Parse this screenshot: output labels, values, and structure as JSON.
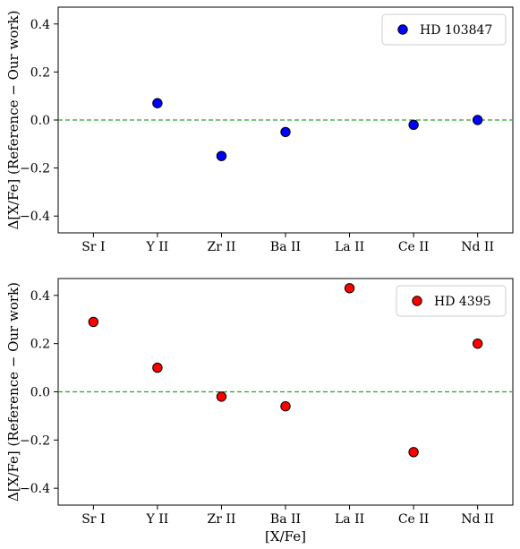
{
  "chart_data": [
    {
      "type": "scatter",
      "categories": [
        "Sr I",
        "Y II",
        "Zr II",
        "Ba II",
        "La II",
        "Ce II",
        "Nd II"
      ],
      "series": [
        {
          "name": "HD 103847",
          "color": "#0000ff",
          "points": [
            {
              "x": "Y II",
              "y": 0.07
            },
            {
              "x": "Zr II",
              "y": -0.15
            },
            {
              "x": "Ba II",
              "y": -0.05
            },
            {
              "x": "Ce II",
              "y": -0.02
            },
            {
              "x": "Nd II",
              "y": 0.0
            }
          ]
        }
      ],
      "xlabel": "",
      "ylabel": "Δ[X/Fe] (Reference − Our work)",
      "ylim": [
        -0.47,
        0.47
      ],
      "yticks": [
        0.4,
        0.2,
        0.0,
        -0.2,
        -0.4
      ],
      "ytick_labels": [
        "0.4",
        "0.2",
        "0.0",
        "−0.2",
        "−0.4"
      ],
      "reference_line": {
        "y": 0.0,
        "color": "#2ca02c",
        "style": "dashed"
      },
      "legend_position": "top-right",
      "grid": false
    },
    {
      "type": "scatter",
      "categories": [
        "Sr I",
        "Y II",
        "Zr II",
        "Ba II",
        "La II",
        "Ce II",
        "Nd II"
      ],
      "series": [
        {
          "name": "HD 4395",
          "color": "#ff0000",
          "points": [
            {
              "x": "Sr I",
              "y": 0.29
            },
            {
              "x": "Y II",
              "y": 0.1
            },
            {
              "x": "Zr II",
              "y": -0.02
            },
            {
              "x": "Ba II",
              "y": -0.06
            },
            {
              "x": "La II",
              "y": 0.43
            },
            {
              "x": "Ce II",
              "y": -0.25
            },
            {
              "x": "Nd II",
              "y": 0.2
            }
          ]
        }
      ],
      "xlabel": "[X/Fe]",
      "ylabel": "Δ[X/Fe] (Reference − Our work)",
      "ylim": [
        -0.47,
        0.47
      ],
      "yticks": [
        0.4,
        0.2,
        0.0,
        -0.2,
        -0.4
      ],
      "ytick_labels": [
        "0.4",
        "0.2",
        "0.0",
        "−0.2",
        "−0.4"
      ],
      "reference_line": {
        "y": 0.0,
        "color": "#2ca02c",
        "style": "dashed"
      },
      "legend_position": "top-right",
      "grid": false
    }
  ]
}
